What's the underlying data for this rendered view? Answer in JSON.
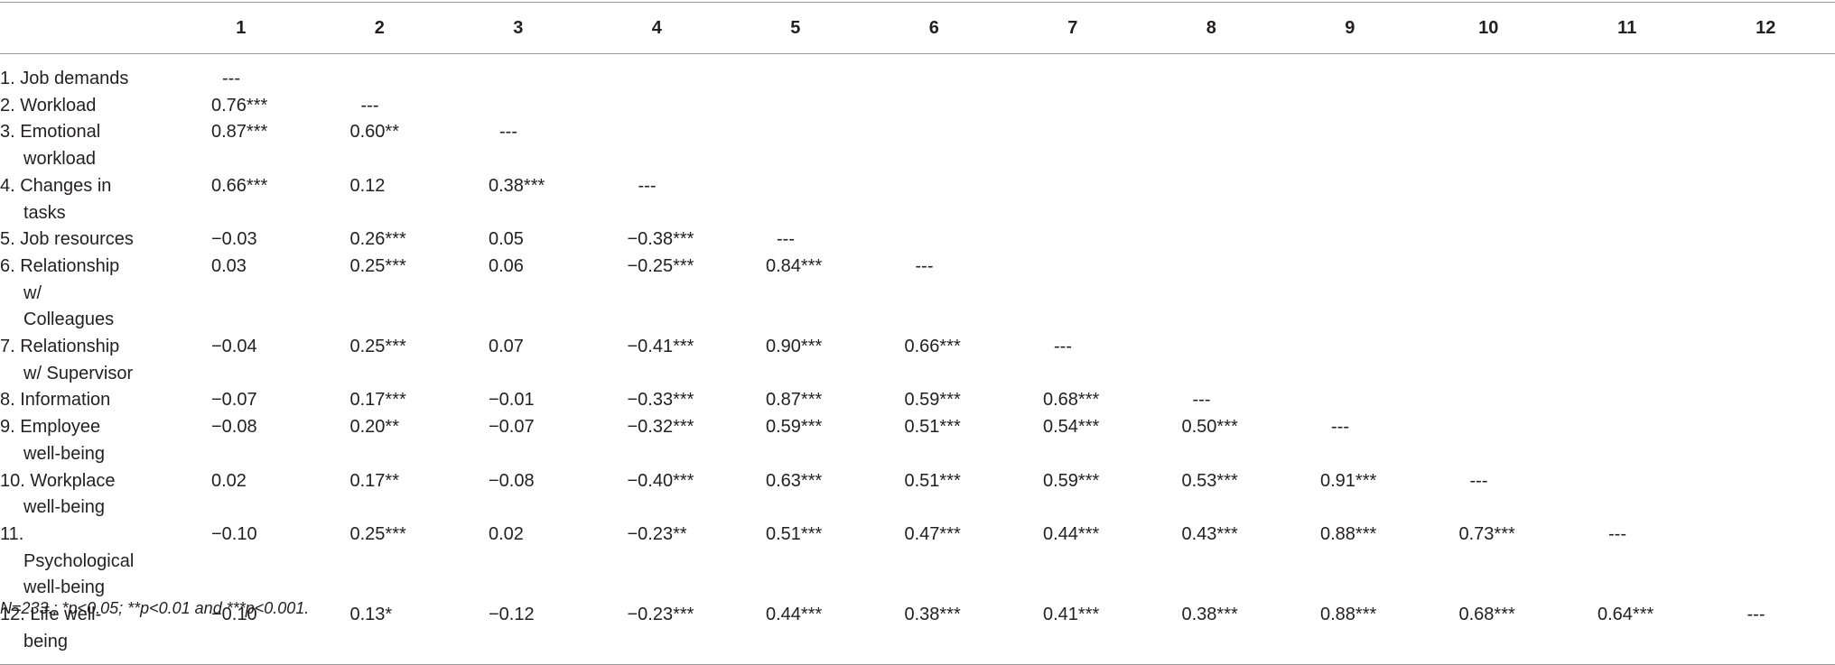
{
  "table": {
    "columns": [
      "1",
      "2",
      "3",
      "4",
      "5",
      "6",
      "7",
      "8",
      "9",
      "10",
      "11",
      "12"
    ],
    "rows": [
      {
        "label": "1. Job demands",
        "cells": [
          "---"
        ]
      },
      {
        "label": "2. Workload",
        "cells": [
          "0.76***",
          "---"
        ]
      },
      {
        "label": "3. Emotional workload",
        "cells": [
          "0.87***",
          "0.60**",
          "---"
        ]
      },
      {
        "label": "4. Changes in tasks",
        "cells": [
          "0.66***",
          "0.12",
          "0.38***",
          "---"
        ]
      },
      {
        "label": "5. Job resources",
        "cells": [
          "−0.03",
          "0.26***",
          "0.05",
          "−0.38***",
          "---"
        ]
      },
      {
        "label": "6. Relationship w/ Colleagues",
        "cells": [
          "0.03",
          "0.25***",
          "0.06",
          "−0.25***",
          "0.84***",
          "---"
        ]
      },
      {
        "label": "7. Relationship w/ Supervisor",
        "cells": [
          "−0.04",
          "0.25***",
          "0.07",
          "−0.41***",
          "0.90***",
          "0.66***",
          "---"
        ]
      },
      {
        "label": "8. Information",
        "cells": [
          "−0.07",
          "0.17***",
          "−0.01",
          "−0.33***",
          "0.87***",
          "0.59***",
          "0.68***",
          "---"
        ]
      },
      {
        "label": "9. Employee well-being",
        "cells": [
          "−0.08",
          "0.20**",
          "−0.07",
          "−0.32***",
          "0.59***",
          "0.51***",
          "0.54***",
          "0.50***",
          "---"
        ]
      },
      {
        "label": "10. Workplace well-being",
        "cells": [
          "0.02",
          "0.17**",
          "−0.08",
          "−0.40***",
          "0.63***",
          "0.51***",
          "0.59***",
          "0.53***",
          "0.91***",
          "---"
        ]
      },
      {
        "label": "11. Psychological well-being",
        "cells": [
          "−0.10",
          "0.25***",
          "0.02",
          "−0.23**",
          "0.51***",
          "0.47***",
          "0.44***",
          "0.43***",
          "0.88***",
          "0.73***",
          "---"
        ]
      },
      {
        "label": "12. Life well-being",
        "cells": [
          "−0.10",
          "0.13*",
          "−0.12",
          "−0.23***",
          "0.44***",
          "0.38***",
          "0.41***",
          "0.38***",
          "0.88***",
          "0.68***",
          "0.64***",
          "---"
        ]
      }
    ],
    "note": "N=233.; *p<0.05; **p<0.01 and ***p<0.001."
  }
}
